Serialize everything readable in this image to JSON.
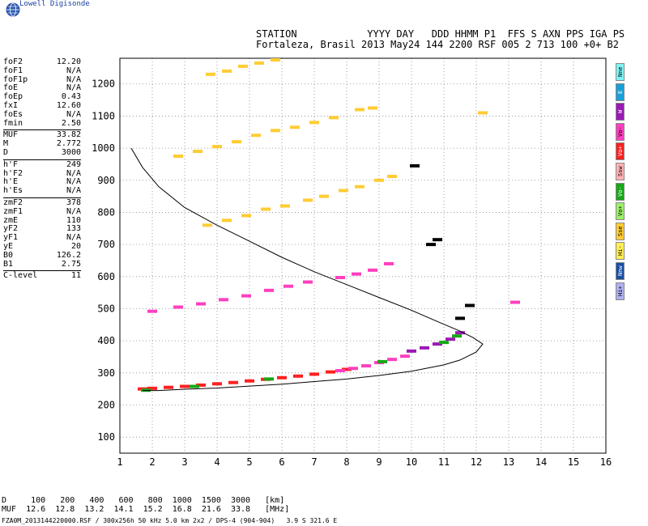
{
  "brand": "Lowell Digisonde",
  "header": {
    "line1": "STATION            YYYY DAY   DDD HHMM P1  FFS S AXN PPS IGA PS",
    "line2": "Fortaleza, Brasil 2013 May24 144 2200 RSF 005 2 713 100 +0+ B2"
  },
  "params": [
    {
      "k": "foF2",
      "v": "12.20"
    },
    {
      "k": "foF1",
      "v": "N/A"
    },
    {
      "k": "foF1p",
      "v": "N/A"
    },
    {
      "k": "foE",
      "v": "N/A"
    },
    {
      "k": "foEp",
      "v": "0.43"
    },
    {
      "k": "fxI",
      "v": "12.60"
    },
    {
      "k": "foEs",
      "v": "N/A"
    },
    {
      "k": "fmin",
      "v": "2.50"
    },
    {
      "sep": true
    },
    {
      "k": "MUF",
      "v": "33.82"
    },
    {
      "k": "M",
      "v": "2.772"
    },
    {
      "k": "D",
      "v": "3000"
    },
    {
      "sep": true
    },
    {
      "k": "h'F",
      "v": "249"
    },
    {
      "k": "h'F2",
      "v": "N/A"
    },
    {
      "k": "h'E",
      "v": "N/A"
    },
    {
      "k": "h'Es",
      "v": "N/A"
    },
    {
      "sep": true
    },
    {
      "k": "zmF2",
      "v": "378"
    },
    {
      "k": "zmF1",
      "v": "N/A"
    },
    {
      "k": "zmE",
      "v": "110"
    },
    {
      "k": "yF2",
      "v": "133"
    },
    {
      "k": "yF1",
      "v": "N/A"
    },
    {
      "k": "yE",
      "v": "20"
    },
    {
      "k": "B0",
      "v": "126.2"
    },
    {
      "k": "B1",
      "v": "2.75"
    },
    {
      "sep": true
    },
    {
      "k": "C-level",
      "v": "11"
    }
  ],
  "legend": [
    {
      "label": "Nne",
      "color": "#7ff4f4"
    },
    {
      "label": "E",
      "color": "#1aa0d8"
    },
    {
      "label": "W",
      "color": "#9b19b5"
    },
    {
      "label": "Vo-",
      "color": "#ff3fbf"
    },
    {
      "label": "Vo+",
      "color": "#ff2020"
    },
    {
      "label": "Ssw",
      "color": "#ffb3b3"
    },
    {
      "label": "Vo-",
      "color": "#17a817"
    },
    {
      "label": "Vo+",
      "color": "#9cf06a"
    },
    {
      "label": "Sse",
      "color": "#ffcc33"
    },
    {
      "label": "Hi-",
      "color": "#ffee55"
    },
    {
      "label": "Nnw",
      "color": "#1a4fa3"
    },
    {
      "label": "Hi+",
      "color": "#b0b0f0"
    }
  ],
  "distance_table": {
    "row1": "D     100   200   400   600   800  1000  1500  3000   [km]",
    "row2": "MUF  12.6  12.8  13.2  14.1  15.2  16.8  21.6  33.8   [MHz]"
  },
  "footer": "FZA0M_2013144220000.RSF / 300x256h 50 kHz 5.0 km 2x2 / DPS-4 (904-904)   3.9 S 321.6 E",
  "chart_data": {
    "type": "scatter",
    "title": "",
    "xlabel": "",
    "ylabel": "",
    "xlim": [
      1,
      16
    ],
    "ylim": [
      50,
      1280
    ],
    "xticks": [
      1,
      2,
      3,
      4,
      5,
      6,
      7,
      8,
      9,
      10,
      11,
      12,
      13,
      14,
      15,
      16
    ],
    "yticks": [
      100,
      200,
      300,
      400,
      500,
      600,
      700,
      800,
      900,
      1000,
      1100,
      1200
    ],
    "grid": true,
    "series": [
      {
        "color": "#ff2020",
        "points": [
          [
            1.7,
            250
          ],
          [
            2.0,
            252
          ],
          [
            2.5,
            255
          ],
          [
            3.0,
            258
          ],
          [
            3.5,
            262
          ],
          [
            4.0,
            266
          ],
          [
            4.5,
            270
          ],
          [
            5.0,
            275
          ],
          [
            5.5,
            280
          ],
          [
            6.0,
            285
          ],
          [
            6.5,
            290
          ],
          [
            7.0,
            296
          ],
          [
            7.5,
            303
          ],
          [
            8.0,
            311
          ]
        ]
      },
      {
        "color": "#ff3fbf",
        "points": [
          [
            7.8,
            307
          ],
          [
            8.2,
            314
          ],
          [
            8.6,
            322
          ],
          [
            9.0,
            332
          ],
          [
            9.4,
            342
          ],
          [
            9.8,
            352
          ]
        ]
      },
      {
        "color": "#9b19b5",
        "points": [
          [
            10.0,
            368
          ],
          [
            10.4,
            378
          ],
          [
            10.8,
            390
          ],
          [
            11.2,
            405
          ],
          [
            11.5,
            425
          ]
        ]
      },
      {
        "color": "#17a817",
        "points": [
          [
            1.8,
            246
          ],
          [
            3.3,
            258
          ],
          [
            5.6,
            281
          ],
          [
            9.1,
            335
          ],
          [
            11.0,
            395
          ],
          [
            11.4,
            415
          ]
        ]
      },
      {
        "color": "#ff3fbf",
        "points": [
          [
            2.0,
            492
          ],
          [
            2.8,
            505
          ],
          [
            3.5,
            515
          ],
          [
            4.2,
            528
          ],
          [
            4.9,
            540
          ],
          [
            5.6,
            557
          ],
          [
            6.2,
            570
          ],
          [
            6.8,
            583
          ]
        ]
      },
      {
        "color": "#ff3fbf",
        "points": [
          [
            7.8,
            597
          ],
          [
            8.3,
            608
          ],
          [
            8.8,
            620
          ],
          [
            9.3,
            640
          ]
        ]
      },
      {
        "color": "#ffcc33",
        "points": [
          [
            3.7,
            760
          ],
          [
            4.3,
            775
          ],
          [
            4.9,
            790
          ],
          [
            5.5,
            810
          ],
          [
            6.1,
            820
          ],
          [
            6.8,
            838
          ],
          [
            7.3,
            850
          ],
          [
            7.9,
            868
          ],
          [
            8.4,
            880
          ],
          [
            9.0,
            900
          ],
          [
            9.4,
            912
          ]
        ]
      },
      {
        "color": "#ffcc33",
        "points": [
          [
            2.8,
            975
          ],
          [
            3.4,
            990
          ],
          [
            4.0,
            1005
          ],
          [
            4.6,
            1020
          ],
          [
            5.2,
            1040
          ],
          [
            5.8,
            1055
          ],
          [
            6.4,
            1065
          ],
          [
            7.0,
            1080
          ],
          [
            7.6,
            1095
          ],
          [
            8.4,
            1120
          ],
          [
            8.8,
            1125
          ]
        ]
      },
      {
        "color": "#ffcc33",
        "points": [
          [
            3.8,
            1230
          ],
          [
            4.3,
            1240
          ],
          [
            4.8,
            1255
          ],
          [
            5.3,
            1265
          ],
          [
            5.8,
            1275
          ]
        ]
      },
      {
        "color": "#000000",
        "points": [
          [
            10.1,
            945
          ],
          [
            10.6,
            700
          ],
          [
            10.8,
            715
          ],
          [
            11.5,
            470
          ],
          [
            11.8,
            510
          ]
        ]
      },
      {
        "color": "#ff3fbf",
        "points": [
          [
            13.2,
            520
          ]
        ]
      },
      {
        "color": "#ffcc33",
        "points": [
          [
            12.2,
            1110
          ]
        ]
      }
    ],
    "profile": [
      [
        1.35,
        1000
      ],
      [
        1.7,
        940
      ],
      [
        2.2,
        880
      ],
      [
        3.0,
        815
      ],
      [
        4.0,
        760
      ],
      [
        5.0,
        710
      ],
      [
        6.0,
        660
      ],
      [
        7.0,
        615
      ],
      [
        8.0,
        575
      ],
      [
        9.0,
        535
      ],
      [
        10.0,
        495
      ],
      [
        10.8,
        460
      ],
      [
        11.5,
        430
      ],
      [
        11.9,
        410
      ],
      [
        12.2,
        390
      ],
      [
        12.0,
        365
      ],
      [
        11.5,
        340
      ],
      [
        11.0,
        325
      ],
      [
        10.0,
        305
      ],
      [
        9.0,
        292
      ],
      [
        8.0,
        281
      ],
      [
        7.0,
        273
      ],
      [
        6.0,
        265
      ],
      [
        5.0,
        259
      ],
      [
        4.0,
        253
      ],
      [
        3.0,
        249
      ],
      [
        2.2,
        245
      ],
      [
        1.7,
        245
      ]
    ]
  }
}
